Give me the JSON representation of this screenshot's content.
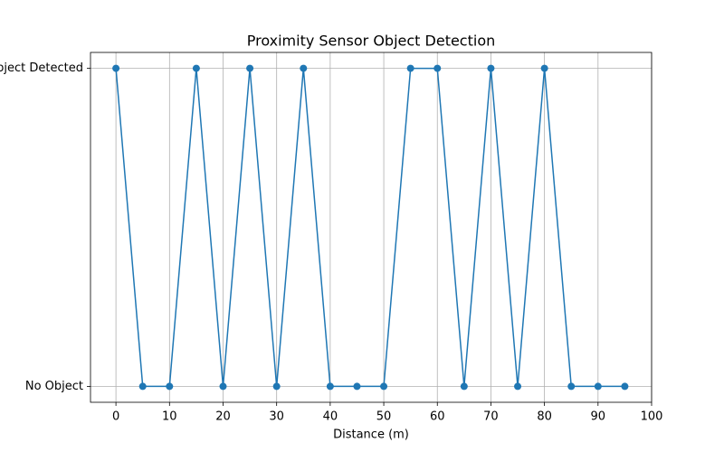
{
  "chart_data": {
    "type": "line",
    "title": "Proximity Sensor Object Detection",
    "x_label": "Distance (m)",
    "x": [
      0,
      5,
      10,
      15,
      20,
      25,
      30,
      35,
      40,
      45,
      50,
      55,
      60,
      65,
      70,
      75,
      80,
      85,
      90,
      95
    ],
    "series": [
      {
        "color": "#1f77b4",
        "values": [
          1,
          0,
          0,
          1,
          0,
          1,
          0,
          1,
          0,
          0,
          0,
          1,
          1,
          0,
          1,
          0,
          1,
          0,
          0,
          0
        ]
      }
    ],
    "xlim": [
      -4.75,
      100
    ],
    "xticks": [
      0,
      10,
      20,
      30,
      40,
      50,
      60,
      70,
      80,
      90,
      100
    ],
    "ylim": [
      -0.05,
      1.05
    ],
    "yticks": [
      {
        "value": 0,
        "label": "No Object"
      },
      {
        "value": 1,
        "label": "Object Detected"
      }
    ],
    "grid": true,
    "markers": true
  }
}
